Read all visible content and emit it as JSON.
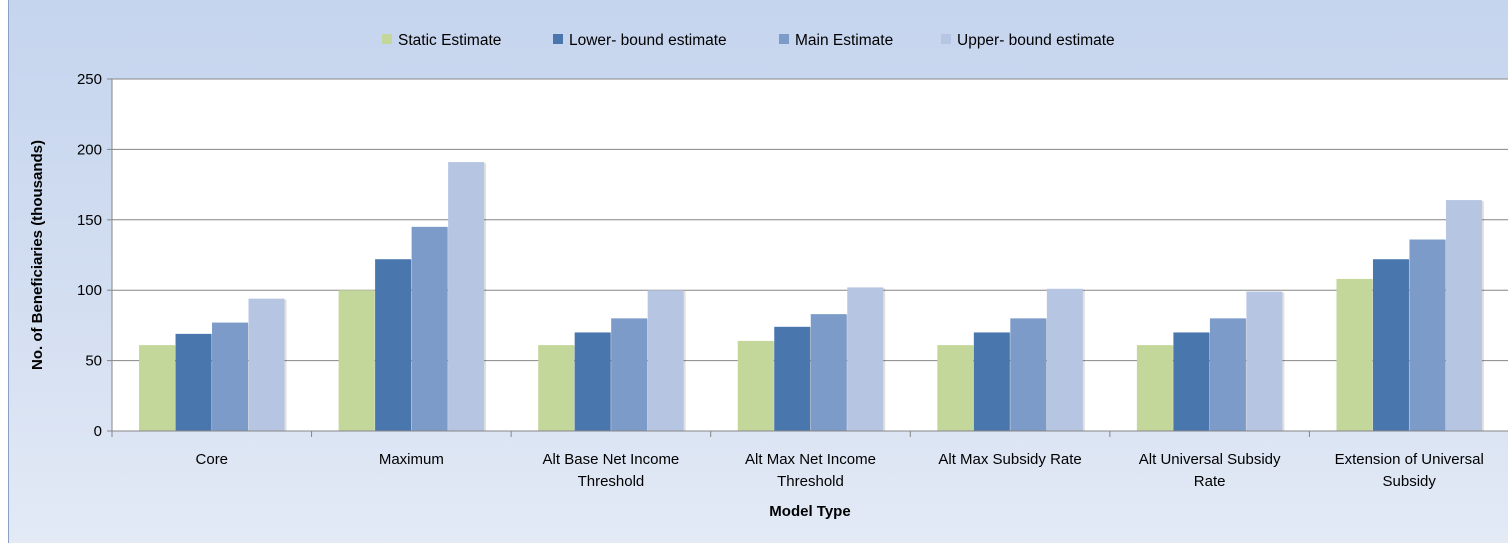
{
  "chart_data": {
    "type": "bar",
    "xlabel": "Model Type",
    "ylabel": "No. of Beneficiaries (thousands)",
    "ylim": [
      0,
      250
    ],
    "yticks": [
      0,
      50,
      100,
      150,
      200,
      250
    ],
    "grid": true,
    "legend_position": "top",
    "categories": [
      [
        "Core"
      ],
      [
        "Maximum"
      ],
      [
        "Alt Base Net Income",
        "Threshold"
      ],
      [
        "Alt Max Net Income",
        "Threshold"
      ],
      [
        "Alt Max Subsidy Rate"
      ],
      [
        "Alt Universal Subsidy",
        "Rate"
      ],
      [
        "Extension of Universal",
        "Subsidy"
      ]
    ],
    "series": [
      {
        "name": "Static Estimate",
        "color": "#c4d79b",
        "values": [
          61,
          100,
          61,
          64,
          61,
          61,
          108
        ]
      },
      {
        "name": "Lower- bound estimate",
        "color": "#4a76ae",
        "values": [
          69,
          122,
          70,
          74,
          70,
          70,
          122
        ]
      },
      {
        "name": "Main Estimate",
        "color": "#7c9bc8",
        "values": [
          77,
          145,
          80,
          83,
          80,
          80,
          136
        ]
      },
      {
        "name": "Upper- bound estimate",
        "color": "#b6c6e2",
        "values": [
          94,
          191,
          100,
          102,
          101,
          99,
          164
        ]
      }
    ]
  }
}
